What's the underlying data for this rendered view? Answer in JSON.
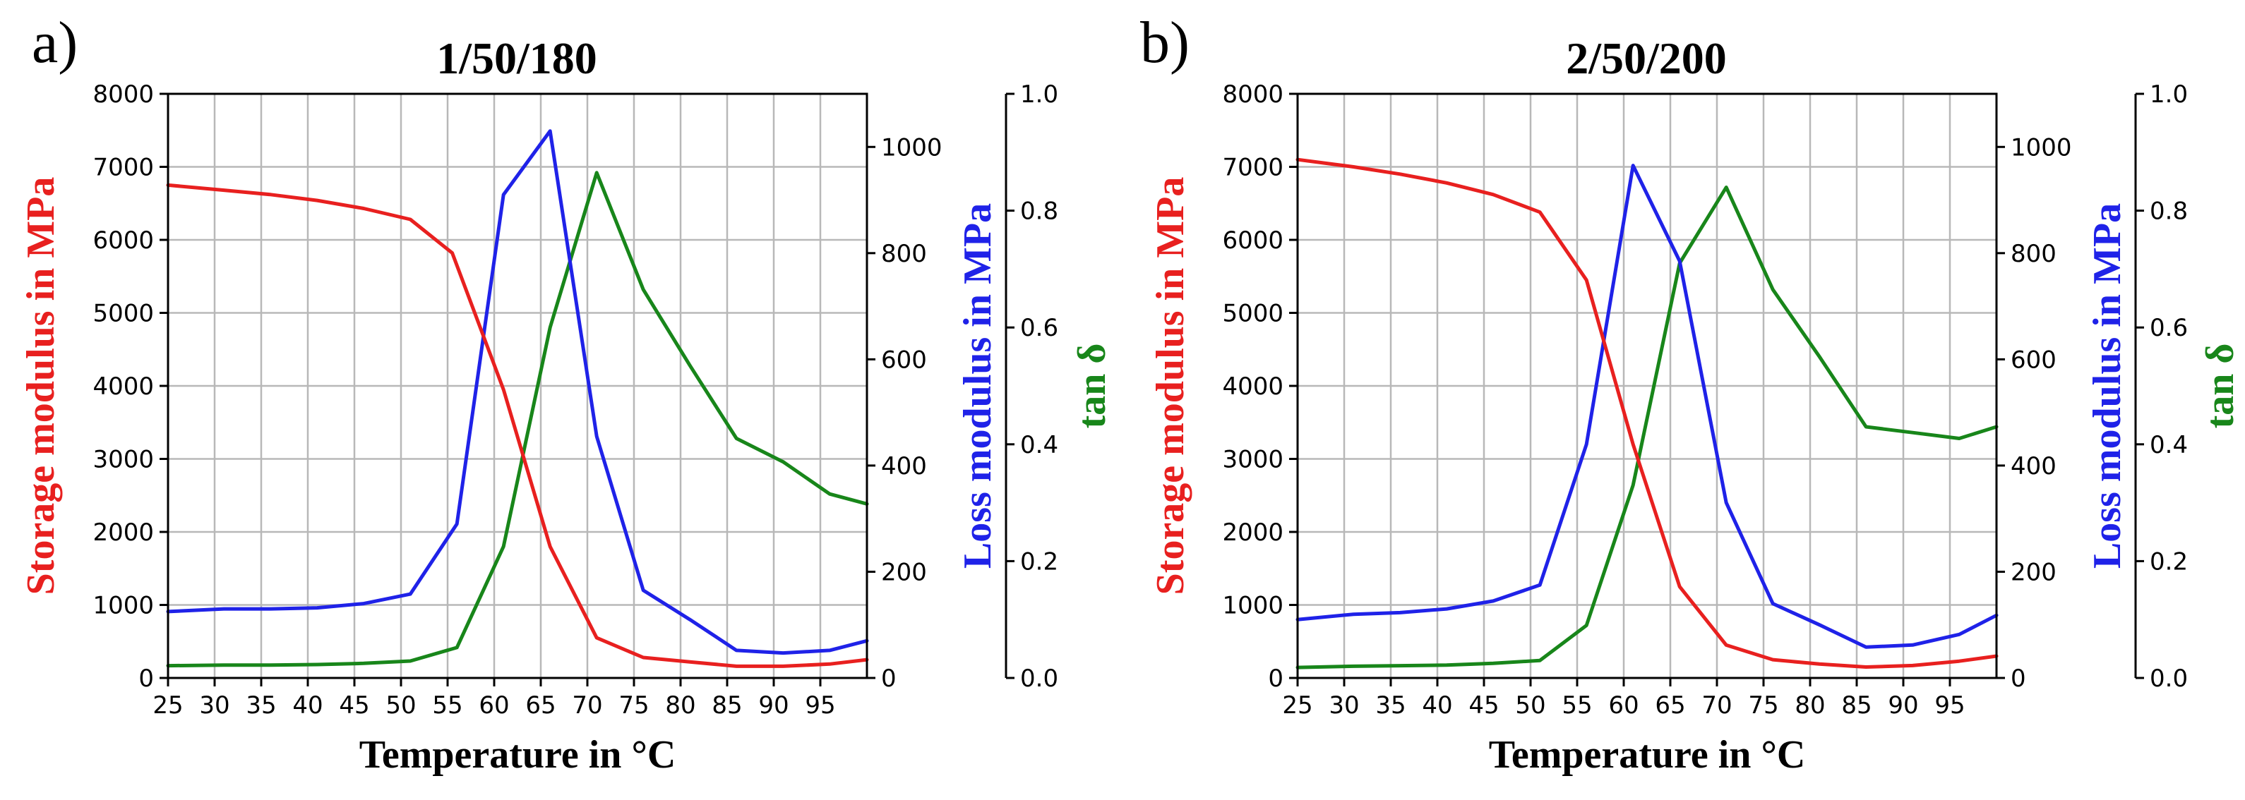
{
  "colors": {
    "storage": "#e8201f",
    "loss": "#1f22e8",
    "tan": "#18861a"
  },
  "chart_data": [
    {
      "type": "line",
      "panel_label": "a)",
      "title": "1/50/180",
      "xlabel": "Temperature in °C",
      "ylabel": "Storage modulus in MPa",
      "ylabel2": "Loss modulus in MPa",
      "ylabel3": "tan δ",
      "xlim": [
        25,
        100
      ],
      "ylim": [
        0,
        8000
      ],
      "ylim2": [
        0,
        1100
      ],
      "ylim3": [
        0,
        1.0
      ],
      "x_ticks": [
        "25",
        "30",
        "35",
        "40",
        "45",
        "50",
        "55",
        "60",
        "65",
        "70",
        "75",
        "80",
        "85",
        "90",
        "95"
      ],
      "y_ticks": [
        "0",
        "1000",
        "2000",
        "3000",
        "4000",
        "5000",
        "6000",
        "7000",
        "8000"
      ],
      "y2_ticks": [
        "0",
        "200",
        "400",
        "600",
        "800",
        "1000"
      ],
      "y3_ticks": [
        "0.0",
        "0.2",
        "0.4",
        "0.6",
        "0.8",
        "1.0"
      ],
      "grid": true,
      "series": [
        {
          "name": "Storage modulus",
          "axis": "left",
          "color": "storage",
          "x": [
            25,
            31,
            36,
            41,
            46,
            51,
            55.5,
            61,
            66,
            71,
            76,
            81,
            86,
            91,
            96,
            100
          ],
          "values": [
            6750,
            6680,
            6620,
            6540,
            6430,
            6280,
            5820,
            3950,
            1800,
            550,
            280,
            220,
            160,
            160,
            190,
            250
          ]
        },
        {
          "name": "Loss modulus",
          "axis": "right",
          "color": "loss",
          "x": [
            25,
            31,
            36,
            41,
            46,
            51,
            56,
            61,
            66,
            71,
            76,
            81,
            86,
            91,
            96,
            100
          ],
          "values": [
            125,
            130,
            130,
            132,
            140,
            158,
            290,
            910,
            1030,
            455,
            165,
            110,
            52,
            47,
            52,
            70
          ]
        },
        {
          "name": "tan δ",
          "axis": "right2",
          "color": "tan",
          "x": [
            25,
            31,
            36,
            41,
            46,
            51,
            56,
            61,
            66,
            71,
            76,
            81,
            86,
            91,
            96,
            100
          ],
          "values": [
            0.021,
            0.022,
            0.022,
            0.023,
            0.025,
            0.029,
            0.052,
            0.225,
            0.6,
            0.865,
            0.665,
            0.535,
            0.41,
            0.37,
            0.315,
            0.298
          ]
        }
      ]
    },
    {
      "type": "line",
      "panel_label": "b)",
      "title": "2/50/200",
      "xlabel": "Temperature in °C",
      "ylabel": "Storage modulus in MPa",
      "ylabel2": "Loss modulus in MPa",
      "ylabel3": "tan δ",
      "xlim": [
        25,
        100
      ],
      "ylim": [
        0,
        8000
      ],
      "ylim2": [
        0,
        1100
      ],
      "ylim3": [
        0,
        1.0
      ],
      "x_ticks": [
        "25",
        "30",
        "35",
        "40",
        "45",
        "50",
        "55",
        "60",
        "65",
        "70",
        "75",
        "80",
        "85",
        "90",
        "95"
      ],
      "y_ticks": [
        "0",
        "1000",
        "2000",
        "3000",
        "4000",
        "5000",
        "6000",
        "7000",
        "8000"
      ],
      "y2_ticks": [
        "0",
        "200",
        "400",
        "600",
        "800",
        "1000"
      ],
      "y3_ticks": [
        "0.0",
        "0.2",
        "0.4",
        "0.6",
        "0.8",
        "1.0"
      ],
      "grid": true,
      "series": [
        {
          "name": "Storage modulus",
          "axis": "left",
          "color": "storage",
          "x": [
            25,
            31,
            36,
            41,
            46,
            51,
            56,
            61,
            66,
            71,
            76,
            81,
            86,
            91,
            96,
            100
          ],
          "values": [
            7100,
            7000,
            6900,
            6780,
            6620,
            6380,
            5450,
            3200,
            1250,
            450,
            250,
            190,
            150,
            170,
            230,
            300
          ]
        },
        {
          "name": "Loss modulus",
          "axis": "right",
          "color": "loss",
          "x": [
            25,
            31,
            36,
            41,
            46,
            51,
            56,
            61,
            66,
            71,
            76,
            81,
            86,
            91,
            96,
            100
          ],
          "values": [
            110,
            120,
            123,
            130,
            145,
            175,
            440,
            965,
            785,
            330,
            140,
            100,
            58,
            62,
            82,
            118
          ]
        },
        {
          "name": "tan δ",
          "axis": "right2",
          "color": "tan",
          "x": [
            25,
            31,
            36,
            41,
            46,
            51,
            56,
            61,
            66,
            71,
            76,
            81,
            86,
            91,
            96,
            100
          ],
          "values": [
            0.018,
            0.02,
            0.021,
            0.022,
            0.025,
            0.03,
            0.09,
            0.33,
            0.71,
            0.84,
            0.665,
            0.55,
            0.43,
            0.42,
            0.41,
            0.43
          ]
        }
      ]
    }
  ]
}
